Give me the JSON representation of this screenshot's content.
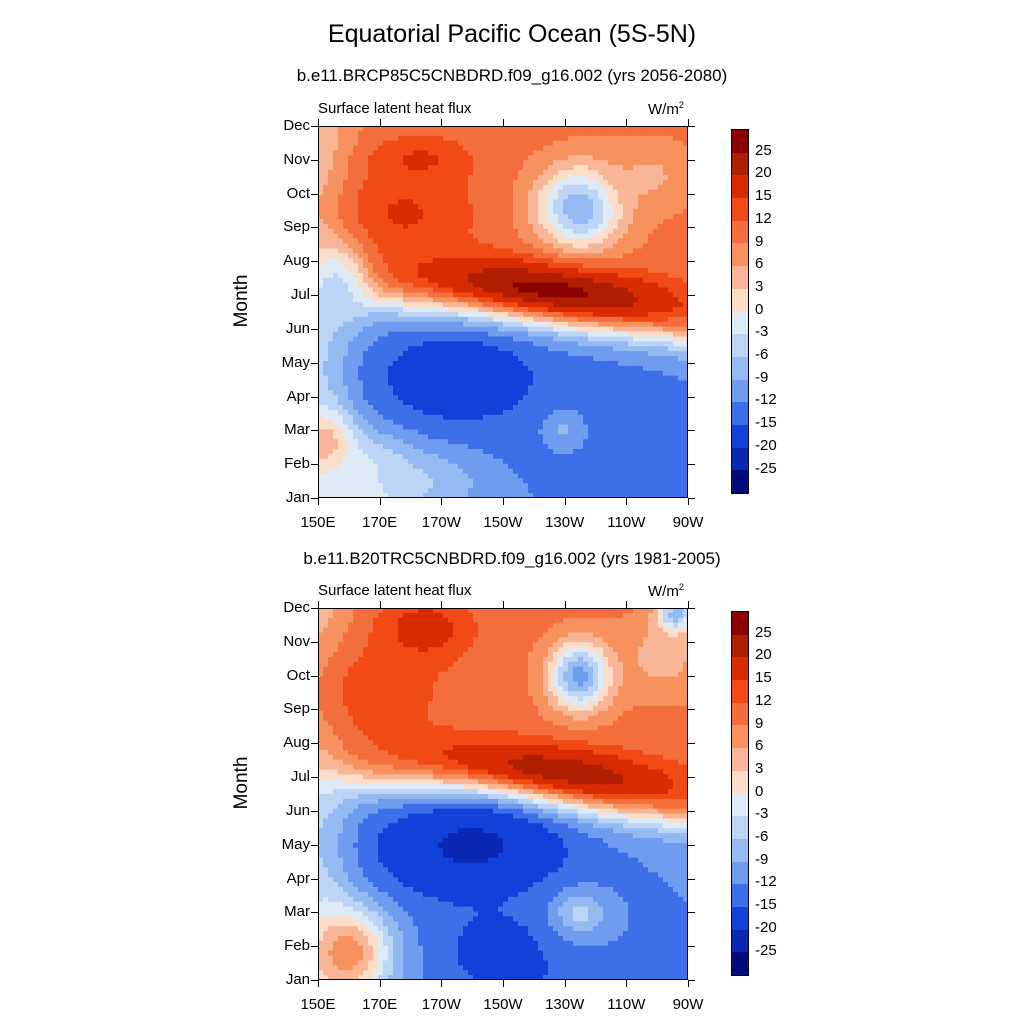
{
  "figure_title": "Equatorial Pacific Ocean (5S-5N)",
  "colorbar_levels": [
    "25",
    "20",
    "15",
    "12",
    "9",
    "6",
    "3",
    "0",
    "-3",
    "-6",
    "-9",
    "-12",
    "-15",
    "-20",
    "-25"
  ],
  "colorbar_colors": [
    "#8b0000",
    "#b01e00",
    "#d92b00",
    "#f24a14",
    "#f46d3c",
    "#f7915e",
    "#f9b697",
    "#fcddc8",
    "#deebf7",
    "#bcd4f5",
    "#94baf2",
    "#6f9cee",
    "#3f6fe8",
    "#1240d9",
    "#0a28b3",
    "#000a7a"
  ],
  "chart_data": [
    {
      "type": "heatmap",
      "title": "b.e11.BRCP85C5CNBDRD.f09_g16.002 (yrs 2056-2080)",
      "left_label": "Surface latent heat flux",
      "units_base": "W/m",
      "units_exp": "2",
      "ylabel": "Month",
      "xlabel": "",
      "x_tick_labels": [
        "150E",
        "170E",
        "170W",
        "150W",
        "130W",
        "110W",
        "90W"
      ],
      "x_tick_lon": [
        150,
        170,
        190,
        210,
        230,
        250,
        270
      ],
      "y_tick_labels": [
        "Jan",
        "Feb",
        "Mar",
        "Apr",
        "May",
        "Jun",
        "Jul",
        "Aug",
        "Sep",
        "Oct",
        "Nov",
        "Dec"
      ],
      "xlim": [
        150,
        270
      ],
      "ylim": [
        1,
        12
      ],
      "levels": [
        -25,
        -20,
        -15,
        -12,
        -9,
        -6,
        -3,
        0,
        3,
        6,
        9,
        12,
        15,
        20,
        25
      ],
      "features": [
        {
          "lon": 168,
          "month": 1.3,
          "value": 6,
          "spread_lon": 14,
          "spread_month": 1.3
        },
        {
          "lon": 152,
          "month": 2.6,
          "value": 7,
          "spread_lon": 10,
          "spread_month": 1.0
        },
        {
          "lon": 180,
          "month": 1.5,
          "value": -5,
          "spread_lon": 25,
          "spread_month": 1.0
        },
        {
          "lon": 196,
          "month": 4.6,
          "value": -19,
          "spread_lon": 28,
          "spread_month": 1.5
        },
        {
          "lon": 240,
          "month": 3.2,
          "value": -15,
          "spread_lon": 28,
          "spread_month": 1.8
        },
        {
          "lon": 230,
          "month": 3.0,
          "value": -8,
          "spread_lon": 8,
          "spread_month": 0.7
        },
        {
          "lon": 262,
          "month": 2.0,
          "value": -12,
          "spread_lon": 14,
          "spread_month": 1.5
        },
        {
          "lon": 178,
          "month": 9.4,
          "value": 16,
          "spread_lon": 22,
          "spread_month": 1.3
        },
        {
          "lon": 183,
          "month": 11.0,
          "value": 16,
          "spread_lon": 16,
          "spread_month": 0.7
        },
        {
          "lon": 235,
          "month": 9.6,
          "value": -11,
          "spread_lon": 14,
          "spread_month": 1.2
        },
        {
          "lon": 258,
          "month": 10.5,
          "value": 5,
          "spread_lon": 14,
          "spread_month": 1.0
        },
        {
          "lon": 156,
          "month": 7.2,
          "value": -5,
          "spread_lon": 10,
          "spread_month": 1.2
        }
      ],
      "band_peak": 27,
      "band_shift_months": 0.0
    },
    {
      "type": "heatmap",
      "title": "b.e11.B20TRC5CNBDRD.f09_g16.002 (yrs 1981-2005)",
      "left_label": "Surface latent heat flux",
      "units_base": "W/m",
      "units_exp": "2",
      "ylabel": "Month",
      "xlabel": "",
      "x_tick_labels": [
        "150E",
        "170E",
        "170W",
        "150W",
        "130W",
        "110W",
        "90W"
      ],
      "x_tick_lon": [
        150,
        170,
        190,
        210,
        230,
        250,
        270
      ],
      "y_tick_labels": [
        "Jan",
        "Feb",
        "Mar",
        "Apr",
        "May",
        "Jun",
        "Jul",
        "Aug",
        "Sep",
        "Oct",
        "Nov",
        "Dec"
      ],
      "xlim": [
        150,
        270
      ],
      "ylim": [
        1,
        12
      ],
      "levels": [
        -25,
        -20,
        -15,
        -12,
        -9,
        -6,
        -3,
        0,
        3,
        6,
        9,
        12,
        15,
        20,
        25
      ],
      "features": [
        {
          "lon": 160,
          "month": 1.8,
          "value": 10,
          "spread_lon": 14,
          "spread_month": 1.4
        },
        {
          "lon": 200,
          "month": 5.0,
          "value": -22,
          "spread_lon": 32,
          "spread_month": 1.6
        },
        {
          "lon": 215,
          "month": 1.8,
          "value": -20,
          "spread_lon": 22,
          "spread_month": 1.2
        },
        {
          "lon": 240,
          "month": 2.3,
          "value": -12,
          "spread_lon": 26,
          "spread_month": 1.5
        },
        {
          "lon": 235,
          "month": 3.0,
          "value": -4,
          "spread_lon": 8,
          "spread_month": 0.6
        },
        {
          "lon": 168,
          "month": 9.5,
          "value": 14,
          "spread_lon": 24,
          "spread_month": 1.8
        },
        {
          "lon": 185,
          "month": 11.4,
          "value": 18,
          "spread_lon": 14,
          "spread_month": 0.9
        },
        {
          "lon": 235,
          "month": 10.0,
          "value": -13,
          "spread_lon": 10,
          "spread_month": 1.0
        },
        {
          "lon": 262,
          "month": 10.6,
          "value": 4,
          "spread_lon": 14,
          "spread_month": 1.2
        },
        {
          "lon": 266,
          "month": 11.8,
          "value": -10,
          "spread_lon": 6,
          "spread_month": 0.5
        }
      ],
      "band_peak": 25,
      "band_shift_months": 0.0
    }
  ]
}
